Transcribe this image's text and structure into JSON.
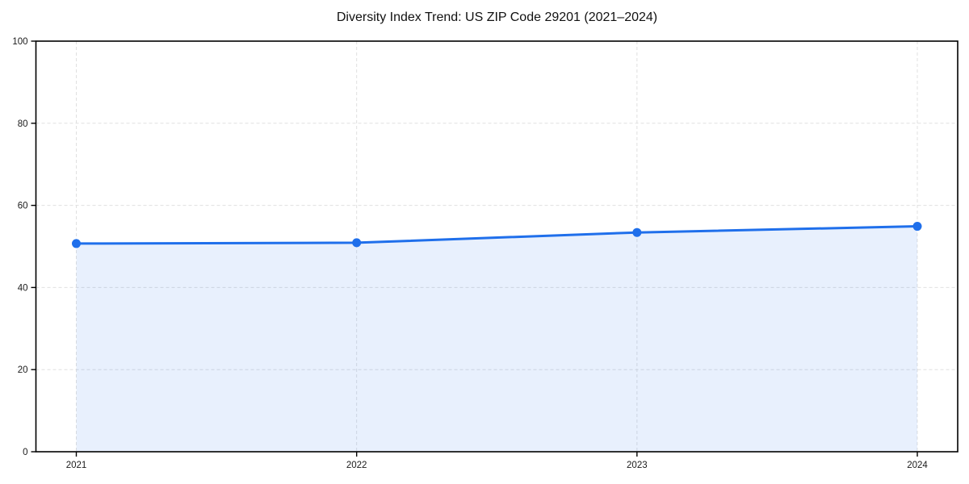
{
  "chart_data": {
    "type": "area",
    "title": "Diversity Index Trend: US ZIP Code 29201 (2021–2024)",
    "categories": [
      "2021",
      "2022",
      "2023",
      "2024"
    ],
    "series": [
      {
        "name": "Diversity Index",
        "values": [
          50.7,
          50.9,
          53.4,
          54.9
        ]
      }
    ],
    "xlabel": "",
    "ylabel": "",
    "ylim": [
      0,
      100
    ],
    "yticks": [
      0,
      20,
      40,
      60,
      80,
      100
    ],
    "grid": true,
    "grid_style": "dashed",
    "legend": false,
    "colors": {
      "line": "#1f6feb",
      "marker": "#1f6feb",
      "area_fill": "rgba(31,111,235,0.10)",
      "grid": "#e0e0e0",
      "axis": "#000000",
      "tick_label": "#1a1a1a",
      "background": "#ffffff"
    }
  }
}
